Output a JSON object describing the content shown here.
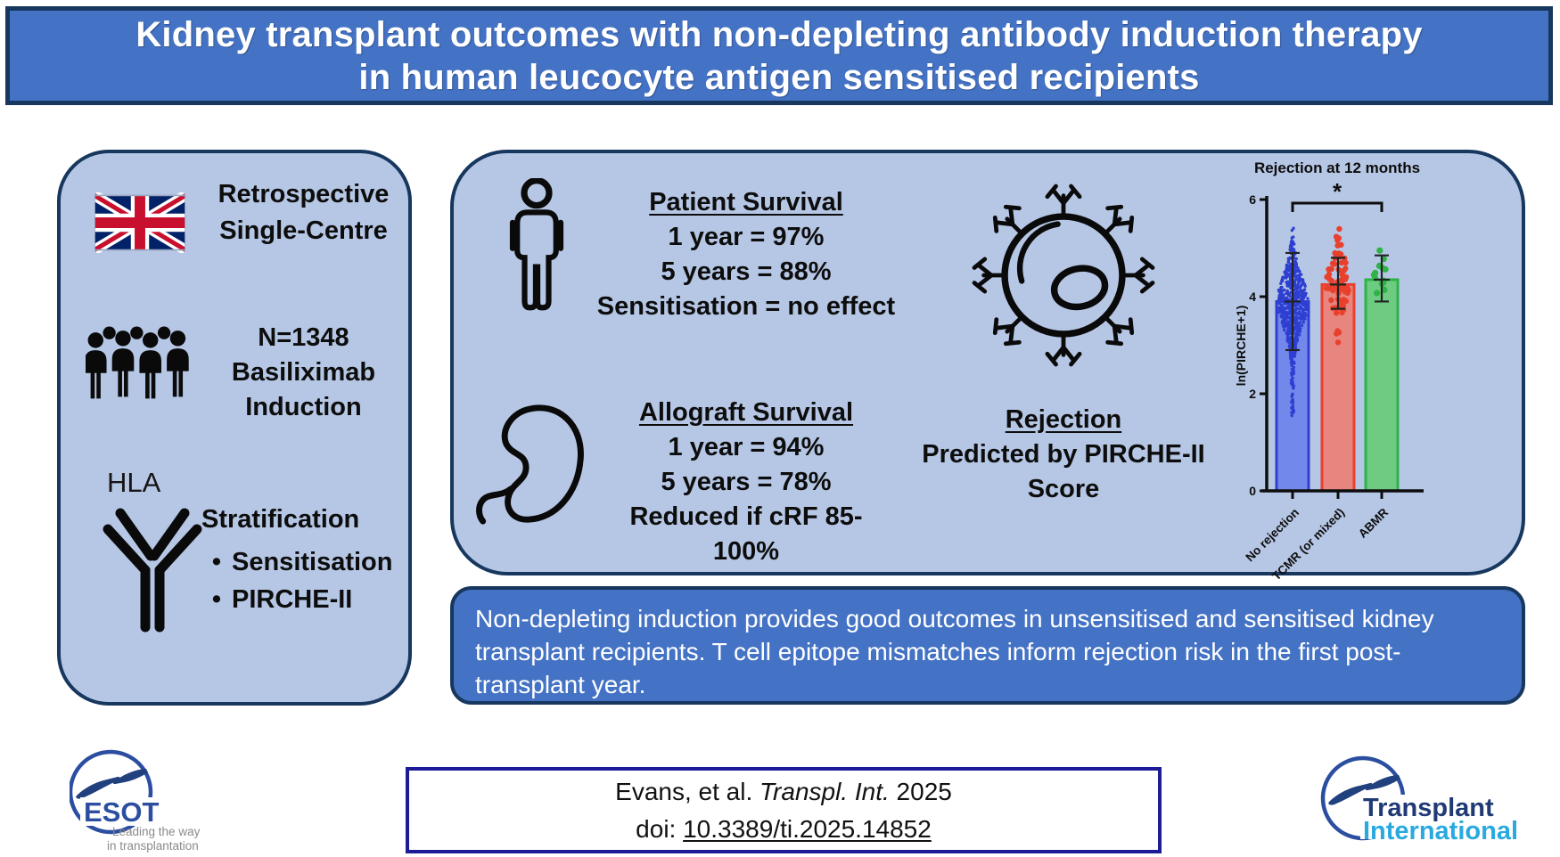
{
  "title": {
    "line1": "Kidney transplant outcomes with non-depleting antibody induction therapy",
    "line2": "in human leucocyte antigen sensitised recipients"
  },
  "study_panel": {
    "row1": {
      "icon": "uk-flag-icon",
      "lines": [
        "Retrospective",
        "Single-Centre"
      ]
    },
    "row2": {
      "icon": "people-group-icon",
      "lines": [
        "N=1348",
        "Basiliximab",
        "Induction"
      ]
    },
    "row3": {
      "icon": "hla-antibody-icon",
      "hla_label": "HLA",
      "heading": "Stratification",
      "bullet_char": "•",
      "bullets": [
        "Sensitisation",
        "PIRCHE-II"
      ]
    }
  },
  "results_panel": {
    "patient_survival": {
      "icon": "person-icon",
      "heading": "Patient Survival",
      "lines": [
        "1 year = 97%",
        "5 years = 88%",
        "Sensitisation = no effect"
      ]
    },
    "allograft_survival": {
      "icon": "kidney-icon",
      "heading": "Allograft Survival",
      "lines": [
        "1 year = 94%",
        "5 years = 78%",
        "Reduced if cRF 85-100%"
      ]
    },
    "rejection": {
      "icon": "cell-antibody-icon",
      "heading": "Rejection",
      "lines": [
        "Predicted by PIRCHE-II",
        "Score"
      ]
    }
  },
  "chart_data": {
    "type": "bar",
    "subtype": "bar-with-scatter-and-error-bars",
    "title": "Rejection at 12 months",
    "xlabel": "",
    "ylabel": "ln(PIRCHE+1)",
    "ylim": [
      0,
      6
    ],
    "yticks": [
      0,
      2,
      4,
      6
    ],
    "categories": [
      "No rejection",
      "TCMR (or mixed)",
      "ABMR"
    ],
    "series": [
      {
        "name": "No rejection",
        "mean": 3.9,
        "error_low": 2.9,
        "error_high": 4.9,
        "n_points": 650,
        "scatter_min": 1.4,
        "scatter_max": 5.6,
        "color": "#2E3FD1",
        "fill": "#6D82EA",
        "marker_size": 1.7
      },
      {
        "name": "TCMR (or mixed)",
        "mean": 4.25,
        "error_low": 3.75,
        "error_high": 4.8,
        "n_points": 75,
        "scatter_min": 2.2,
        "scatter_max": 5.5,
        "color": "#E8402C",
        "fill": "#EC8075",
        "marker_size": 3.2
      },
      {
        "name": "ABMR",
        "mean": 4.35,
        "error_low": 3.9,
        "error_high": 4.85,
        "n_points": 13,
        "scatter_min": 3.55,
        "scatter_max": 4.95,
        "color": "#2FB347",
        "fill": "#67CC78",
        "marker_size": 3.6
      }
    ],
    "significance": {
      "label": "*",
      "from_index": 0,
      "to_index": 2
    },
    "grid": false,
    "legend": false
  },
  "summary_banner": {
    "lines": [
      "Non-depleting induction provides good outcomes in unsensitised and sensitised kidney",
      "transplant recipients. T cell epitope mismatches inform rejection risk in the first post-",
      "transplant year."
    ]
  },
  "citation": {
    "authors": "Evans, et al. ",
    "journal": "Transpl. Int.",
    "year": " 2025",
    "doi_label": "doi: ",
    "doi": "10.3389/ti.2025.14852"
  },
  "logos": {
    "esot": {
      "name": "ESOT",
      "tagline_line1": "Leading the way",
      "tagline_line2": "in transplantation"
    },
    "transplant_international": {
      "line1": "Transplant",
      "line2": "International"
    }
  },
  "colors": {
    "banner_blue": "#4472C4",
    "panel_blue": "#B6C7E5",
    "border_navy": "#17375E",
    "citation_border": "#1C1C99",
    "esot_blue": "#2B4EA0",
    "ti_dark_blue": "#1F3A75",
    "ti_light_blue": "#2AA9E0",
    "flag_blue": "#012169",
    "flag_red": "#C8102E"
  }
}
